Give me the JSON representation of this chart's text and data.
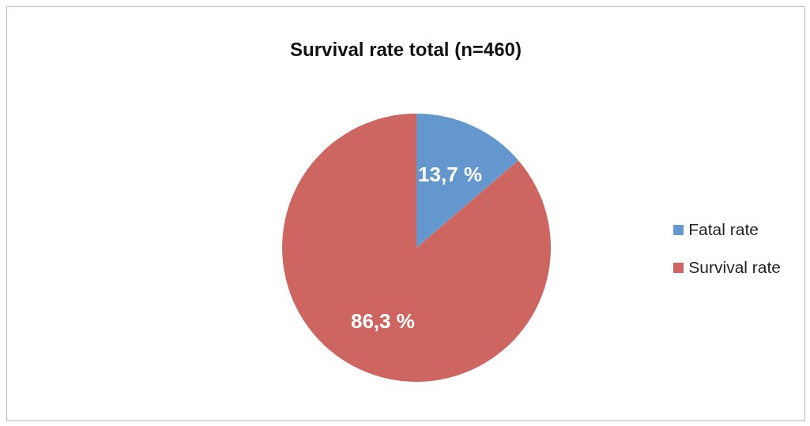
{
  "chart_data": {
    "type": "pie",
    "title": "Survival rate total (n=460)",
    "categories": [
      "Fatal rate",
      "Survival rate"
    ],
    "values": [
      13.7,
      86.3
    ],
    "colors": [
      "#6497cd",
      "#cd6660"
    ],
    "value_labels": [
      "13,7 %",
      "86,3 %"
    ],
    "legend": "right"
  }
}
